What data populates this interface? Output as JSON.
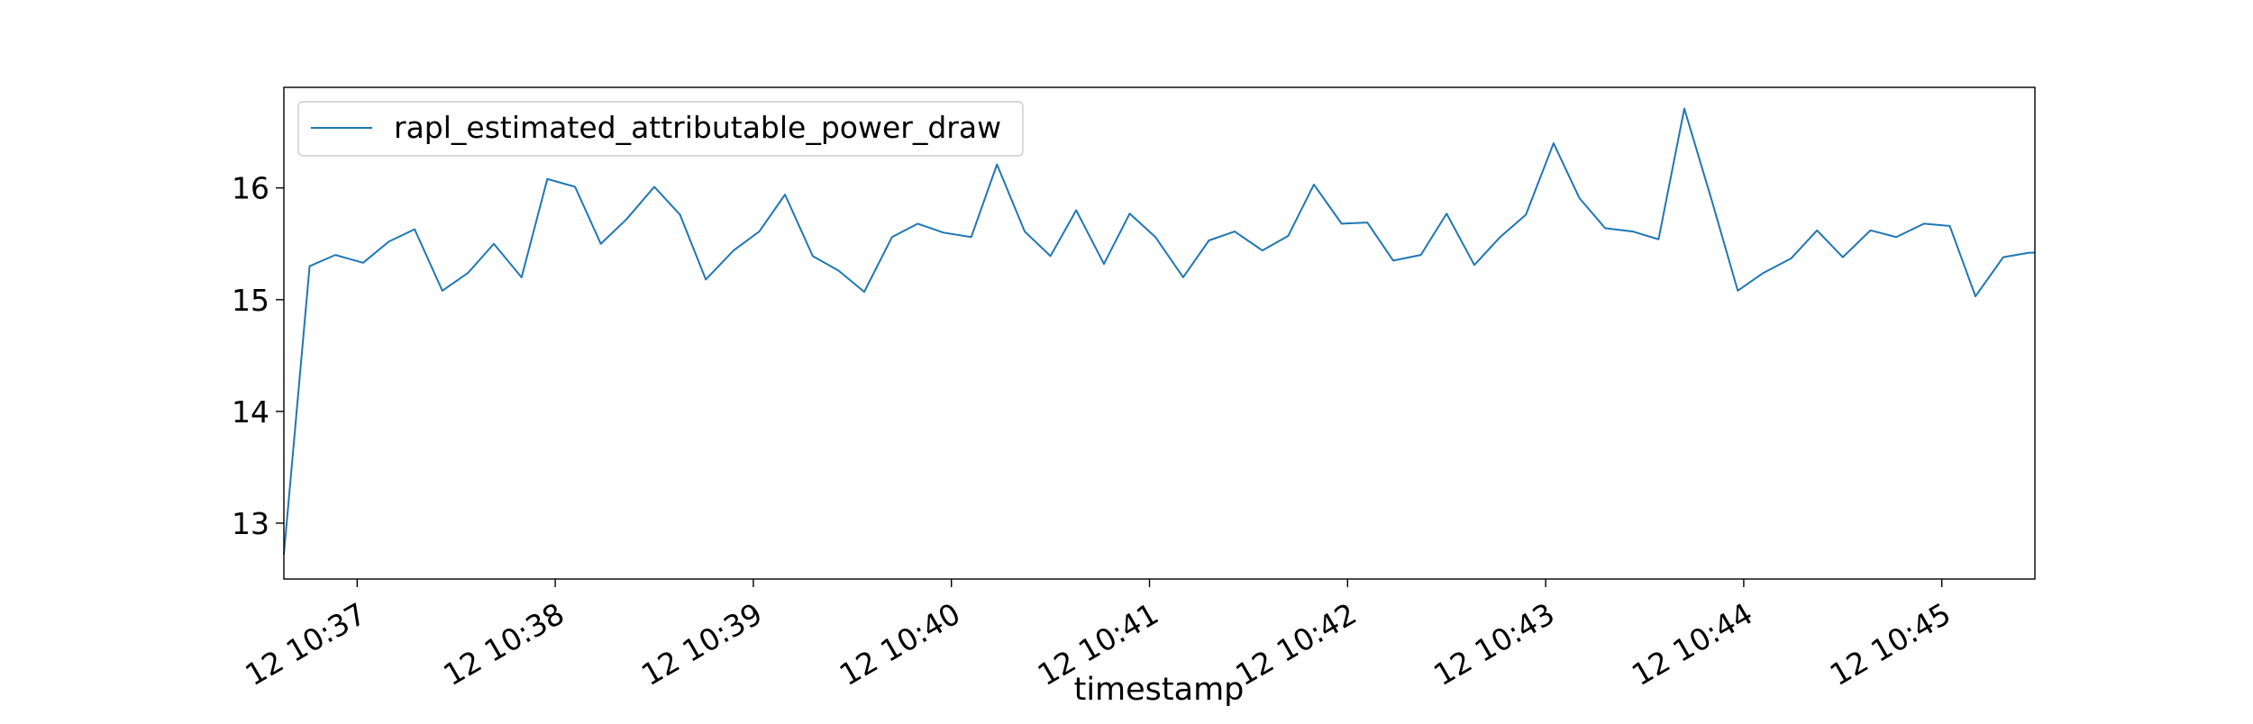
{
  "chart_data": {
    "type": "line",
    "title": "",
    "xlabel": "timestamp",
    "ylabel": "",
    "x_ticks": [
      {
        "label": "12 10:37",
        "minute": 37
      },
      {
        "label": "12 10:38",
        "minute": 38
      },
      {
        "label": "12 10:39",
        "minute": 39
      },
      {
        "label": "12 10:40",
        "minute": 40
      },
      {
        "label": "12 10:41",
        "minute": 41
      },
      {
        "label": "12 10:42",
        "minute": 42
      },
      {
        "label": "12 10:43",
        "minute": 43
      },
      {
        "label": "12 10:44",
        "minute": 44
      },
      {
        "label": "12 10:45",
        "minute": 45
      }
    ],
    "y_ticks": [
      {
        "label": "13",
        "value": 13
      },
      {
        "label": "14",
        "value": 14
      },
      {
        "label": "15",
        "value": 15
      },
      {
        "label": "16",
        "value": 16
      }
    ],
    "xlim": [
      36.63,
      45.47
    ],
    "ylim": [
      12.5,
      16.9
    ],
    "grid": false,
    "legend": {
      "position": "top-left"
    },
    "series": [
      {
        "name": "rapl_estimated_attributable_power_draw",
        "color": "#1f77b4",
        "minutes": [
          36.63,
          36.76,
          36.89,
          37.03,
          37.16,
          37.29,
          37.43,
          37.56,
          37.69,
          37.83,
          37.96,
          38.1,
          38.23,
          38.36,
          38.5,
          38.63,
          38.76,
          38.9,
          39.03,
          39.16,
          39.3,
          39.43,
          39.56,
          39.7,
          39.83,
          39.96,
          40.1,
          40.23,
          40.37,
          40.5,
          40.63,
          40.77,
          40.9,
          41.03,
          41.17,
          41.3,
          41.43,
          41.57,
          41.7,
          41.83,
          41.97,
          42.1,
          42.23,
          42.37,
          42.5,
          42.64,
          42.77,
          42.9,
          43.04,
          43.17,
          43.3,
          43.44,
          43.57,
          43.7,
          43.84,
          43.97,
          44.1,
          44.24,
          44.37,
          44.5,
          44.64,
          44.77,
          44.91,
          45.04,
          45.17,
          45.31,
          45.44,
          45.47
        ],
        "values": [
          12.72,
          15.3,
          15.4,
          15.33,
          15.52,
          15.63,
          15.08,
          15.24,
          15.5,
          15.2,
          16.08,
          16.01,
          15.5,
          15.72,
          16.01,
          15.76,
          15.18,
          15.44,
          15.61,
          15.94,
          15.39,
          15.26,
          15.07,
          15.56,
          15.68,
          15.6,
          15.56,
          16.21,
          15.61,
          15.39,
          15.8,
          15.32,
          15.77,
          15.56,
          15.2,
          15.53,
          15.61,
          15.44,
          15.57,
          16.03,
          15.68,
          15.69,
          15.35,
          15.4,
          15.77,
          15.31,
          15.56,
          15.76,
          16.4,
          15.91,
          15.64,
          15.61,
          15.54,
          16.71,
          15.88,
          15.08,
          15.24,
          15.37,
          15.62,
          15.38,
          15.62,
          15.56,
          15.68,
          15.66,
          15.03,
          15.38,
          15.42,
          15.42
        ]
      }
    ]
  }
}
